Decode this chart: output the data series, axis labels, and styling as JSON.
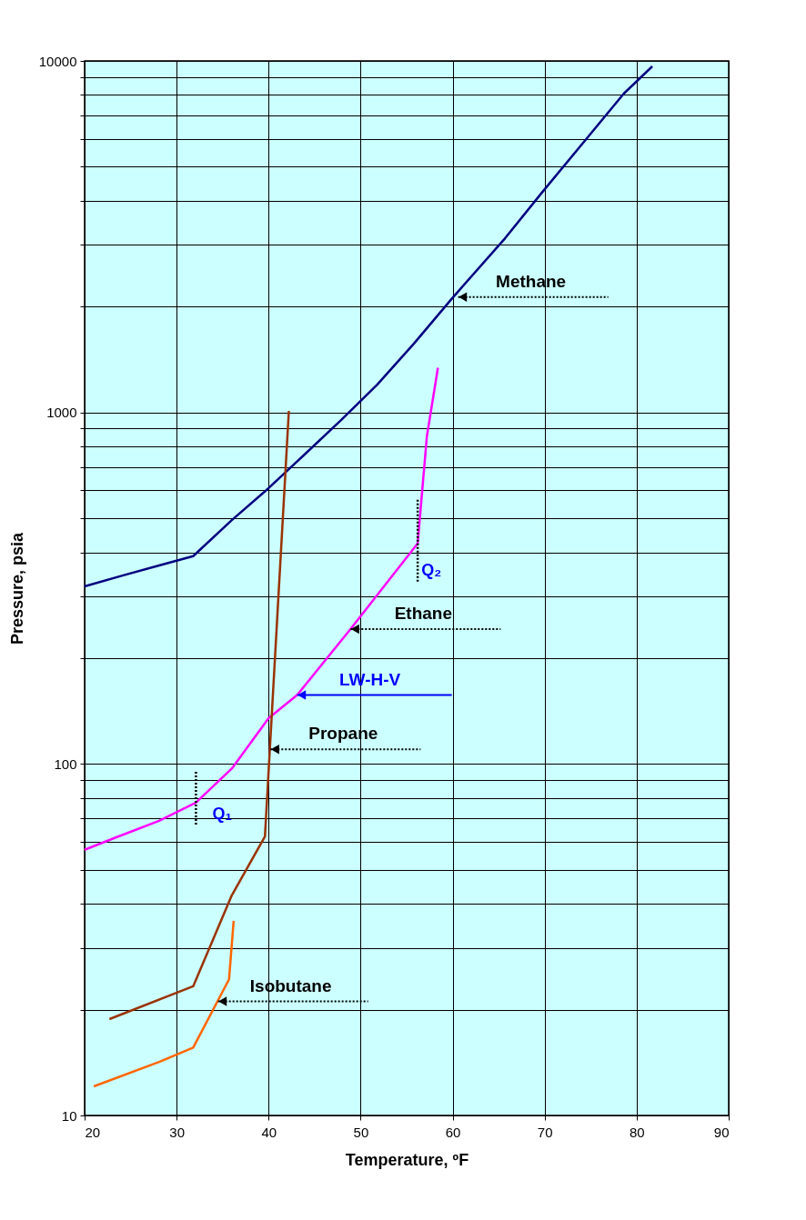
{
  "chart_data": {
    "type": "line",
    "xlabel": "Temperature, ºF",
    "ylabel": "Pressure, psia",
    "log": "y",
    "grid": true,
    "legend": false,
    "marker": "none",
    "line_style": "solid",
    "xlim": [
      20,
      90
    ],
    "xticks": [
      20,
      30,
      40,
      50,
      60,
      70,
      80,
      90
    ],
    "ylim": [
      10,
      10000
    ],
    "yticks": [
      10,
      {
        "value": 20,
        "label": null
      },
      {
        "value": 30,
        "label": null
      },
      {
        "value": 40,
        "label": null
      },
      {
        "value": 50,
        "label": null
      },
      {
        "value": 60,
        "label": null
      },
      {
        "value": 70,
        "label": null
      },
      {
        "value": 80,
        "label": null
      },
      {
        "value": 90,
        "label": null
      },
      100,
      {
        "value": 200,
        "label": null
      },
      {
        "value": 300,
        "label": null
      },
      {
        "value": 400,
        "label": null
      },
      {
        "value": 500,
        "label": null
      },
      {
        "value": 600,
        "label": null
      },
      {
        "value": 700,
        "label": null
      },
      {
        "value": 800,
        "label": null
      },
      {
        "value": 900,
        "label": null
      },
      1000,
      {
        "value": 2000,
        "label": null
      },
      {
        "value": 3000,
        "label": null
      },
      {
        "value": 4000,
        "label": null
      },
      {
        "value": 5000,
        "label": null
      },
      {
        "value": 6000,
        "label": null
      },
      {
        "value": 7000,
        "label": null
      },
      {
        "value": 8000,
        "label": null
      },
      {
        "value": 9000,
        "label": null
      },
      10000
    ],
    "series": [
      {
        "color": "#000080",
        "x": [
          20,
          24.2,
          28.1,
          31.8,
          36.0,
          40.0,
          43.9,
          47.9,
          51.8,
          55.8,
          59.8,
          65.7,
          69.7,
          74.6,
          78.6,
          81.7
        ],
        "values": [
          320,
          344,
          367,
          390,
          494,
          609,
          759,
          952,
          1200,
          1570,
          2090,
          3130,
          4220,
          6030,
          8070,
          9650
        ]
      },
      {
        "color": "#ff00ff",
        "x": [
          20,
          23.2,
          28.1,
          32.1,
          36.0,
          40.0,
          43.1,
          48.9,
          56.2,
          57.2,
          58.4
        ],
        "values": [
          57,
          61.5,
          68.9,
          77.6,
          97,
          135,
          157,
          242,
          424,
          855,
          1340
        ]
      },
      {
        "color": "#993300",
        "x": [
          22.7,
          31.8,
          36.0,
          39.6,
          42.2
        ],
        "values": [
          18.8,
          23.3,
          42.3,
          62.2,
          1010
        ]
      },
      {
        "color": "#ff6600",
        "x": [
          21.0,
          28.1,
          31.8,
          35.7,
          36.2
        ],
        "values": [
          12.1,
          14.2,
          15.6,
          24.4,
          35.8
        ]
      }
    ],
    "annotations": [
      {
        "text": "Methane",
        "x": 60.6,
        "y": 2130
      },
      {
        "text": "Ethane",
        "x": 48.9,
        "y": 242
      },
      {
        "text": "Propane",
        "x": 40.2,
        "y": 110
      },
      {
        "text": "Isobutane",
        "x": 34.5,
        "y": 21.1
      },
      {
        "text": "LW-H-V",
        "x": 43.1,
        "y": 157
      },
      {
        "text": "Q₁",
        "x": 32.1,
        "y": 77.6
      },
      {
        "text": "Q₂",
        "x": 56.2,
        "y": 424
      }
    ]
  }
}
